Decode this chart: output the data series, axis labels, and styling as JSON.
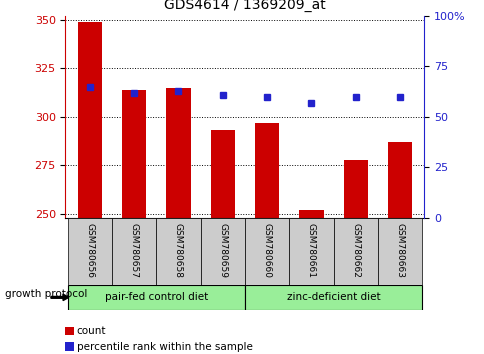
{
  "title": "GDS4614 / 1369209_at",
  "samples": [
    "GSM780656",
    "GSM780657",
    "GSM780658",
    "GSM780659",
    "GSM780660",
    "GSM780661",
    "GSM780662",
    "GSM780663"
  ],
  "counts": [
    349,
    314,
    315,
    293,
    297,
    252,
    278,
    287
  ],
  "percentile_ranks": [
    65,
    62,
    63,
    61,
    60,
    57,
    60,
    60
  ],
  "ylim_left": [
    248,
    352
  ],
  "ylim_right": [
    0,
    100
  ],
  "yticks_left": [
    250,
    275,
    300,
    325,
    350
  ],
  "yticks_right": [
    0,
    25,
    50,
    75,
    100
  ],
  "bar_color": "#cc0000",
  "dot_color": "#2222cc",
  "bar_width": 0.55,
  "group1_label": "pair-fed control diet",
  "group2_label": "zinc-deficient diet",
  "group1_indices": [
    0,
    1,
    2,
    3
  ],
  "group2_indices": [
    4,
    5,
    6,
    7
  ],
  "group_color": "#99ee99",
  "group_border_color": "#000000",
  "left_axis_color": "#cc0000",
  "right_axis_color": "#2222cc",
  "legend_count_label": "count",
  "legend_pct_label": "percentile rank within the sample",
  "tick_bg_color": "#cccccc",
  "growth_protocol_label": "growth protocol"
}
